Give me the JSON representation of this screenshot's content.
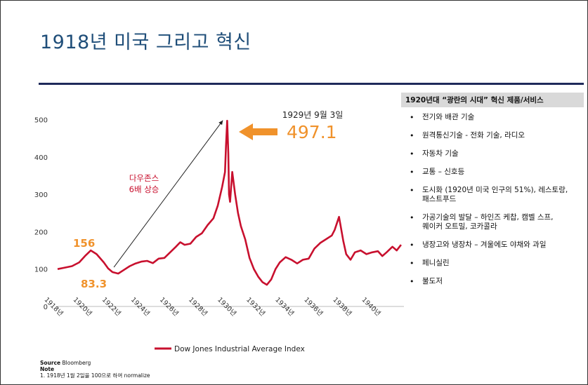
{
  "title": "1918년 미국 그리고 혁신",
  "chart_data": {
    "type": "line",
    "series": [
      {
        "name": "Dow Jones Industrial Average Index",
        "color": "#c8102e",
        "x": [
          1918.0,
          1918.5,
          1919.0,
          1919.5,
          1919.9,
          1920.3,
          1920.7,
          1921.2,
          1921.5,
          1921.8,
          1922.2,
          1922.6,
          1923.0,
          1923.4,
          1923.8,
          1924.2,
          1924.6,
          1925.0,
          1925.4,
          1925.8,
          1926.2,
          1926.5,
          1926.8,
          1927.2,
          1927.6,
          1928.0,
          1928.4,
          1928.8,
          1929.1,
          1929.4,
          1929.6,
          1929.67,
          1929.75,
          1929.83,
          1929.88,
          1929.95,
          1930.1,
          1930.3,
          1930.5,
          1930.7,
          1931.0,
          1931.3,
          1931.6,
          1931.9,
          1932.2,
          1932.5,
          1932.8,
          1933.1,
          1933.4,
          1933.8,
          1934.2,
          1934.6,
          1935.0,
          1935.4,
          1935.8,
          1936.2,
          1936.6,
          1937.0,
          1937.2,
          1937.5,
          1937.8,
          1938.0,
          1938.3,
          1938.6,
          1939.0,
          1939.4,
          1939.8,
          1940.2,
          1940.5,
          1940.8,
          1941.2,
          1941.5,
          1941.8
        ],
        "values": [
          100,
          104,
          108,
          118,
          135,
          150,
          140,
          118,
          102,
          92,
          88,
          98,
          108,
          115,
          120,
          122,
          116,
          128,
          130,
          145,
          160,
          172,
          165,
          168,
          186,
          196,
          218,
          236,
          270,
          320,
          360,
          430,
          497.1,
          410,
          300,
          280,
          360,
          300,
          250,
          215,
          180,
          130,
          100,
          80,
          65,
          58,
          72,
          100,
          118,
          132,
          125,
          115,
          125,
          128,
          155,
          170,
          180,
          190,
          205,
          240,
          175,
          140,
          125,
          145,
          150,
          140,
          145,
          148,
          135,
          145,
          160,
          150,
          165
        ]
      }
    ],
    "xlim": [
      1918,
      1942
    ],
    "ylim": [
      0,
      520
    ],
    "y_ticks": [
      "0",
      "100",
      "200",
      "300",
      "400",
      "500"
    ],
    "x_ticks": [
      {
        "v": 1918,
        "label": "1918년"
      },
      {
        "v": 1920,
        "label": "1920년"
      },
      {
        "v": 1922,
        "label": "1922년"
      },
      {
        "v": 1924,
        "label": "1924년"
      },
      {
        "v": 1926,
        "label": "1926년"
      },
      {
        "v": 1928,
        "label": "1928년"
      },
      {
        "v": 1930,
        "label": "1930년"
      },
      {
        "v": 1932,
        "label": "1932년"
      },
      {
        "v": 1934,
        "label": "1934년"
      },
      {
        "v": 1936,
        "label": "1936년"
      },
      {
        "v": 1938,
        "label": "1938년"
      },
      {
        "v": 1940,
        "label": "1940년"
      }
    ],
    "legend_placement": "bottom",
    "annotations": {
      "peak_date": "1929년 9월 3일",
      "peak_value": "497.1",
      "high_1919": "156",
      "low_1921": "83.3",
      "rise_line1": "다우존스",
      "rise_line2": "6배 상승"
    },
    "accent_color": "#f0922b",
    "annotation_color": "#c8102e"
  },
  "panel": {
    "header": "1920년대 “광란의 시대” 혁신 제품/서비스",
    "bullet": "•",
    "items": [
      [
        "전기와 배관 기술"
      ],
      [
        "원격통신기술 - 전화 기술, 라디오"
      ],
      [
        "자동차 기술"
      ],
      [
        "교통 – 신호등"
      ],
      [
        "도시화 (1920년 미국 인구의 51%), 레스토랑,",
        "패스트푸드"
      ],
      [
        "가공기술의 발달 – 하인즈 케찹, 캠벨 스프,",
        "퀘이커 오트밀, 코카콜라"
      ],
      [
        "냉장고와 냉장차 – 겨울에도 야채와 과일"
      ],
      [
        "페니실린"
      ],
      [
        "불도저"
      ]
    ]
  },
  "source": {
    "label": "Source",
    "text": "Bloomberg",
    "note_label": "Note",
    "note": "1.      1918년 1월 2일을 100으로 하여 normalize"
  }
}
